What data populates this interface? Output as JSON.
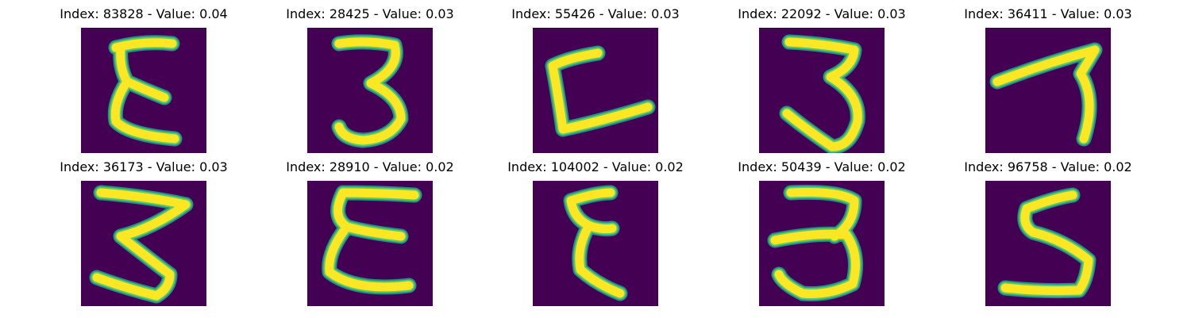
{
  "colors": {
    "background": "#440154",
    "stroke_edge": "#21918c",
    "stroke_mid": "#5ec962",
    "stroke_core": "#fde725"
  },
  "panels": [
    {
      "title": "Index: 83828 - Value: 0.04",
      "glyph": "epsilon-like 3"
    },
    {
      "title": "Index: 28425 - Value: 0.03",
      "glyph": "3"
    },
    {
      "title": "Index: 55426 - Value: 0.03",
      "glyph": "open angular C"
    },
    {
      "title": "Index: 22092 - Value: 0.03",
      "glyph": "3"
    },
    {
      "title": "Index: 36411 - Value: 0.03",
      "glyph": "7-like stroke"
    },
    {
      "title": "Index: 36173 - Value: 0.03",
      "glyph": "sigma-like 3"
    },
    {
      "title": "Index: 28910 - Value: 0.02",
      "glyph": "epsilon"
    },
    {
      "title": "Index: 104002 - Value: 0.02",
      "glyph": "epsilon-like 3"
    },
    {
      "title": "Index: 50439 - Value: 0.02",
      "glyph": "3"
    },
    {
      "title": "Index: 96758 - Value: 0.02",
      "glyph": "5"
    }
  ]
}
